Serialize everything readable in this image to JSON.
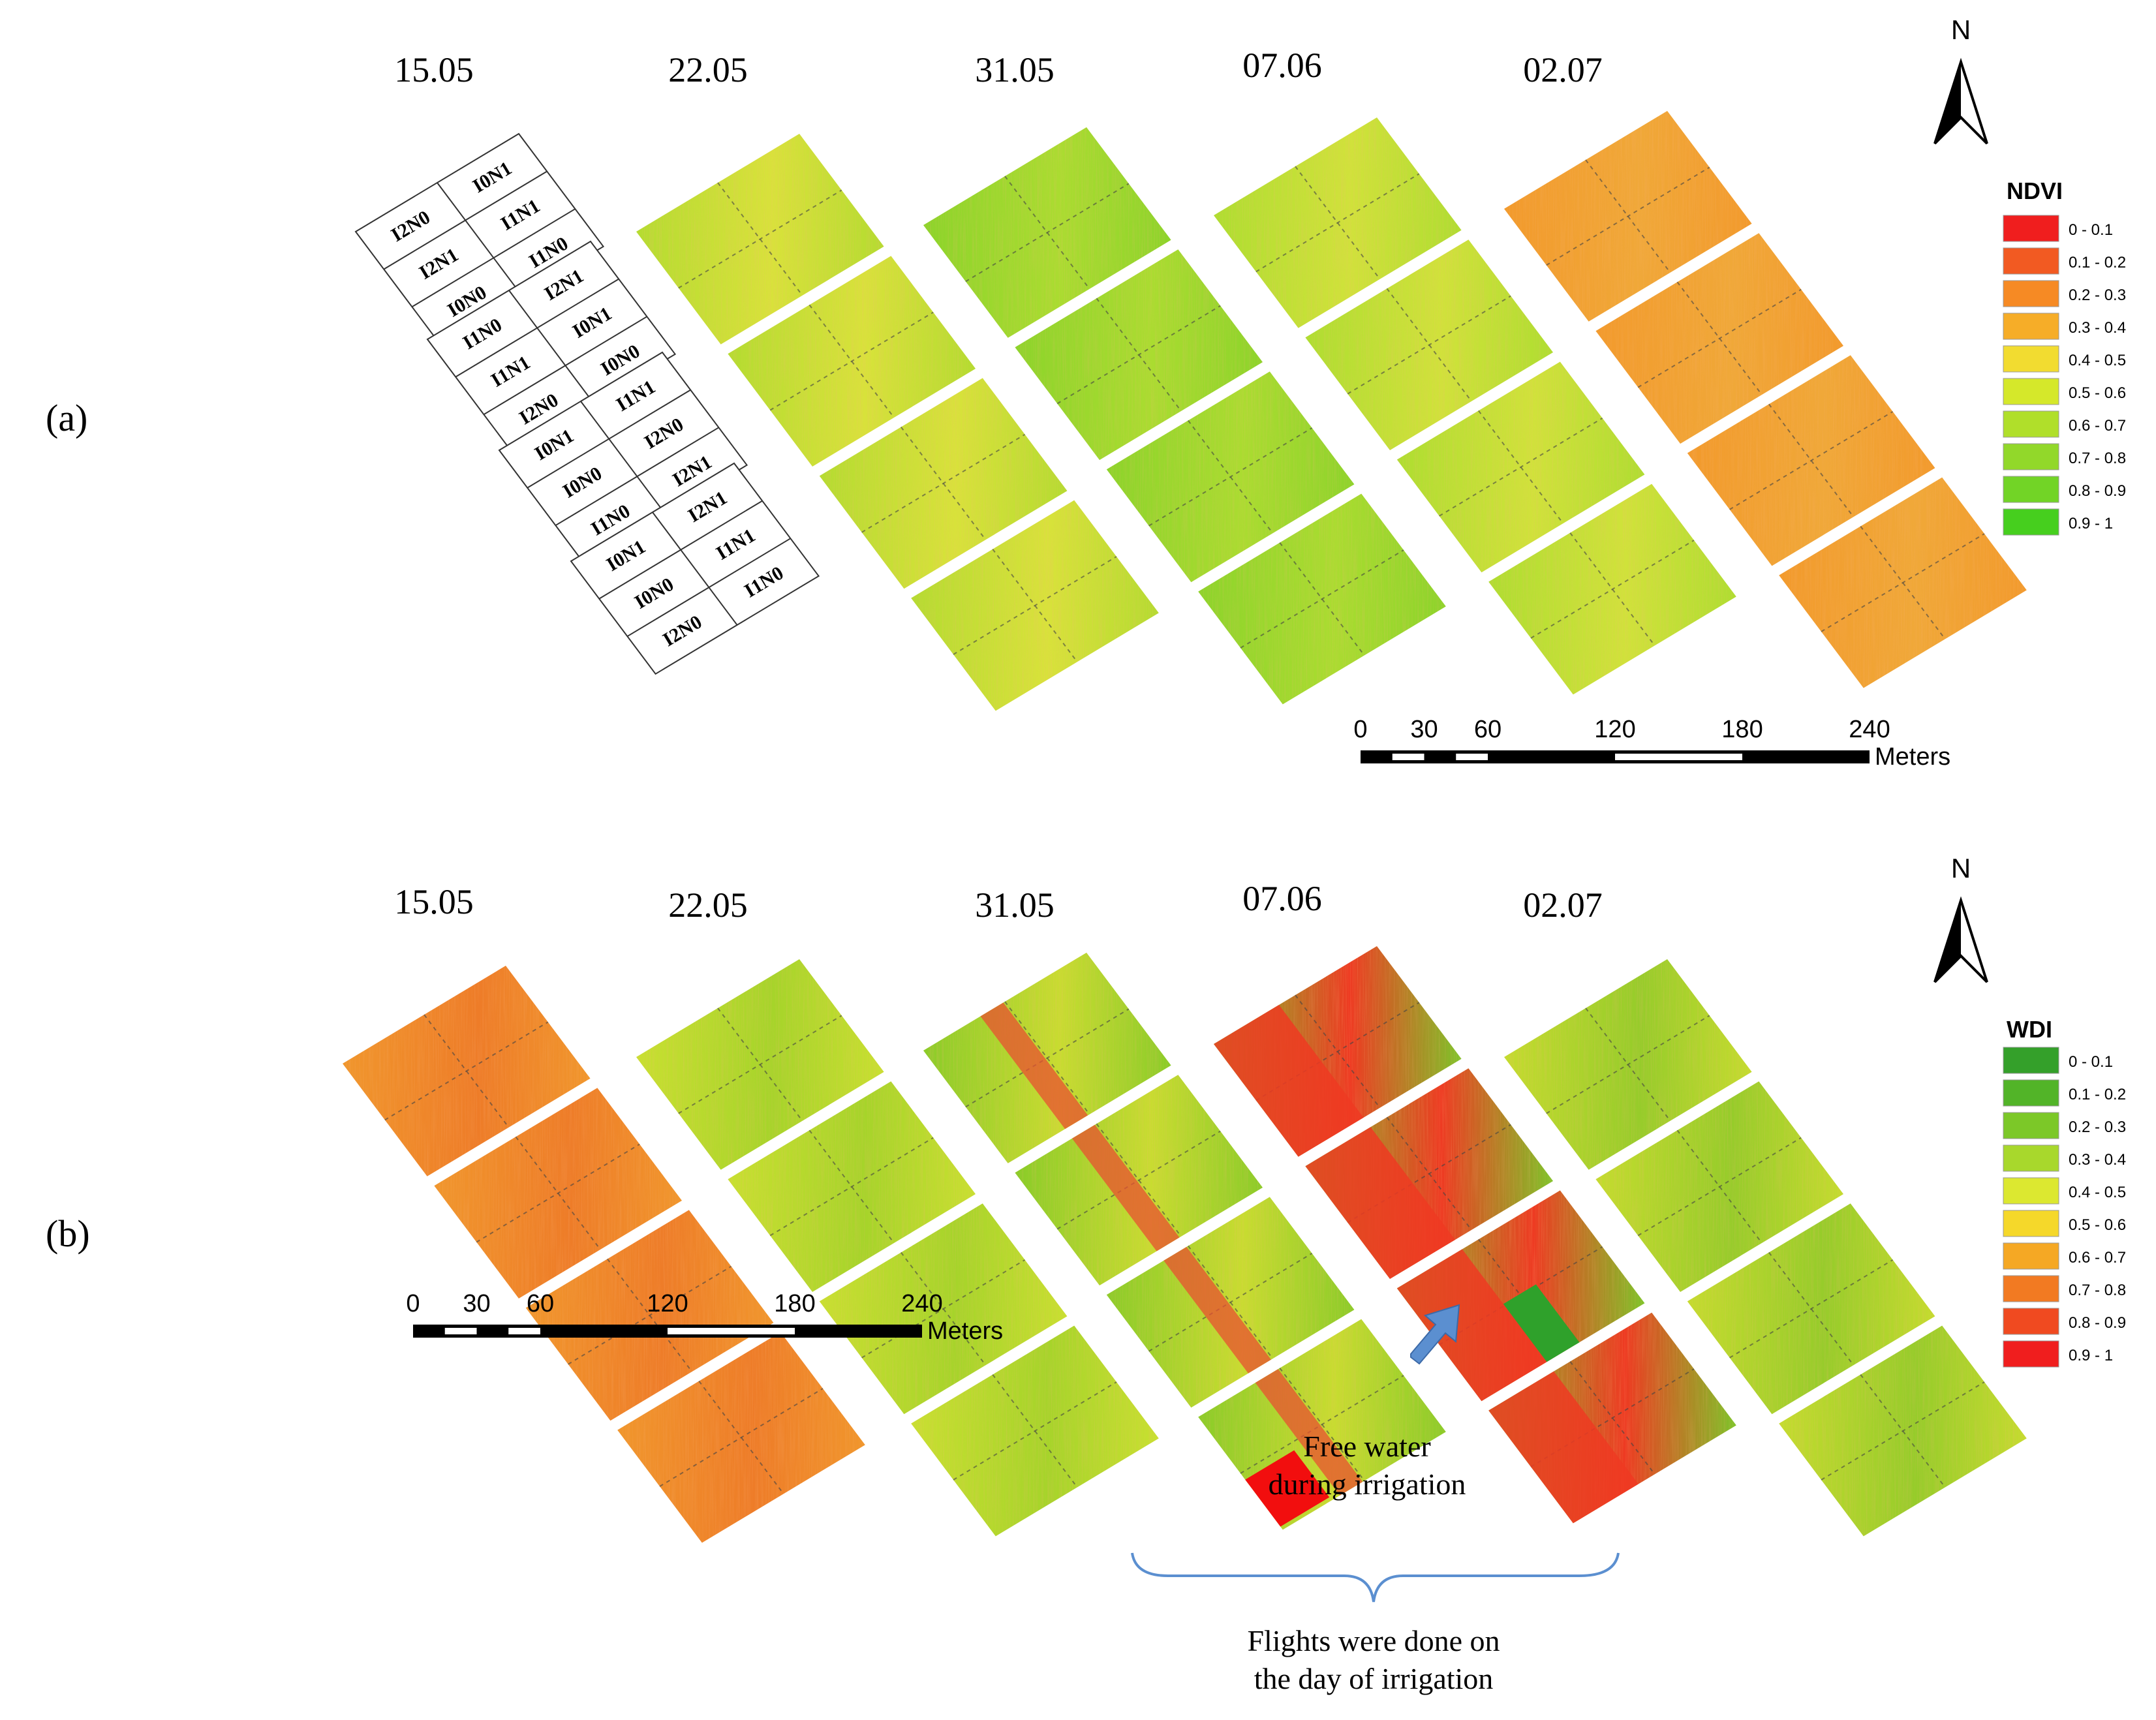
{
  "panel_a": {
    "label": "(a)",
    "dates": [
      "15.05",
      "22.05",
      "31.05",
      "07.06",
      "02.07"
    ],
    "plot_labels": [
      [
        "I2N0",
        "I0N1",
        "I2N1",
        "I1N1",
        "I0N0",
        "I1N0"
      ],
      [
        "I1N0",
        "I2N1",
        "I1N1",
        "I0N1",
        "I2N0",
        "I0N0"
      ],
      [
        "I0N1",
        "I1N1",
        "I0N0",
        "I2N0",
        "I1N0",
        "I2N1"
      ],
      [
        "I0N1",
        "I2N1",
        "I0N0",
        "I1N1",
        "I2N0",
        "I1N0"
      ]
    ],
    "legend": {
      "title": "NDVI",
      "items": [
        {
          "label": "0 - 0.1",
          "color": "#f01e1e"
        },
        {
          "label": "0.1 - 0.2",
          "color": "#f25a22"
        },
        {
          "label": "0.2 - 0.3",
          "color": "#f68a24"
        },
        {
          "label": "0.3 - 0.4",
          "color": "#f6ad28"
        },
        {
          "label": "0.4 - 0.5",
          "color": "#f2dc30"
        },
        {
          "label": "0.5 - 0.6",
          "color": "#d5e82a"
        },
        {
          "label": "0.6 - 0.7",
          "color": "#b0df2a"
        },
        {
          "label": "0.7 - 0.8",
          "color": "#92d82a"
        },
        {
          "label": "0.8 - 0.9",
          "color": "#72d426"
        },
        {
          "label": "0.9 - 1",
          "color": "#46cf1e"
        }
      ]
    },
    "north_label": "N",
    "scale_bar": {
      "ticks": [
        "0",
        "30",
        "60",
        "120",
        "180",
        "240"
      ],
      "unit": "Meters"
    }
  },
  "panel_b": {
    "label": "(b)",
    "dates": [
      "15.05",
      "22.05",
      "31.05",
      "07.06",
      "02.07"
    ],
    "legend": {
      "title": "WDI",
      "items": [
        {
          "label": "0 - 0.1",
          "color": "#34a02a"
        },
        {
          "label": "0.1 - 0.2",
          "color": "#52b428"
        },
        {
          "label": "0.2 - 0.3",
          "color": "#7cc828"
        },
        {
          "label": "0.3 - 0.4",
          "color": "#a8d82c"
        },
        {
          "label": "0.4 - 0.5",
          "color": "#dce830"
        },
        {
          "label": "0.5 - 0.6",
          "color": "#f5d82a"
        },
        {
          "label": "0.6 - 0.7",
          "color": "#f5a824"
        },
        {
          "label": "0.7 - 0.8",
          "color": "#f27a22"
        },
        {
          "label": "0.8 - 0.9",
          "color": "#f04a20"
        },
        {
          "label": "0.9 - 1",
          "color": "#f01e1e"
        }
      ]
    },
    "north_label": "N",
    "scale_bar": {
      "ticks": [
        "0",
        "30",
        "60",
        "120",
        "180",
        "240"
      ],
      "unit": "Meters"
    },
    "annotation_water": [
      "Free water",
      "during irrigation"
    ],
    "annotation_flights": [
      "Flights were done on",
      "the day of irrigation"
    ]
  },
  "field_colors": {
    "a_1": [
      "#b4dc30",
      "#d8e23a"
    ],
    "a_2": [
      "#8cd42a",
      "#aadc30"
    ],
    "a_3": [
      "#aede30",
      "#d0e23a"
    ],
    "a_4": [
      "#f29a2c",
      "#f0a838"
    ],
    "b_0": [
      "#f0962c",
      "#ee7c28"
    ],
    "b_1": [
      "#c8e030",
      "#a6d42a"
    ],
    "b_2": [
      "#8acc28",
      "#c8dc30"
    ],
    "b_3": [
      "#7cc428",
      "#ee3a22"
    ],
    "b_4": [
      "#c4dc2e",
      "#96cc2a"
    ],
    "stripe_red": "#e85030",
    "water_green": "#2fa12b",
    "water_red": "#f20e0e",
    "grid_line": "#444444",
    "arrow_fill": "#5b8fd0"
  }
}
